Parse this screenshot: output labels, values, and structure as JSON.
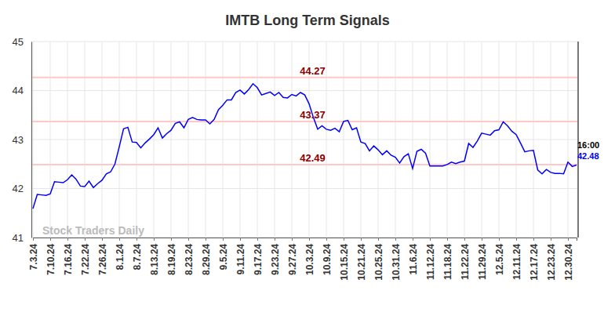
{
  "chart_data": {
    "type": "line",
    "title": "IMTB Long Term Signals",
    "categories": [
      "7.3.24",
      null,
      null,
      null,
      "7.10.24",
      null,
      null,
      null,
      "7.16.24",
      null,
      null,
      null,
      "7.22.24",
      null,
      null,
      null,
      "7.26.24",
      null,
      null,
      null,
      "8.1.24",
      null,
      null,
      null,
      "8.7.24",
      null,
      null,
      null,
      "8.13.24",
      null,
      null,
      null,
      "8.19.24",
      null,
      null,
      null,
      "8.23.24",
      null,
      null,
      null,
      "8.29.24",
      null,
      null,
      null,
      "9.5.24",
      null,
      null,
      null,
      "9.11.24",
      null,
      null,
      null,
      "9.17.24",
      null,
      null,
      null,
      "9.23.24",
      null,
      null,
      null,
      "9.27.24",
      null,
      null,
      null,
      "10.3.24",
      null,
      null,
      null,
      "10.9.24",
      null,
      null,
      null,
      "10.15.24",
      null,
      null,
      null,
      "10.21.24",
      null,
      null,
      null,
      "10.25.24",
      null,
      null,
      null,
      "10.31.24",
      null,
      null,
      null,
      "11.6.24",
      null,
      null,
      null,
      "11.12.24",
      null,
      null,
      null,
      "11.18.24",
      null,
      null,
      null,
      "11.22.24",
      null,
      null,
      null,
      "11.29.24",
      null,
      null,
      null,
      "12.5.24",
      null,
      null,
      null,
      "12.11.24",
      null,
      null,
      null,
      "12.17.24",
      null,
      null,
      null,
      "12.23.24",
      null,
      null,
      null,
      "12.30.24",
      null,
      null
    ],
    "values": [
      41.59,
      41.88,
      41.87,
      41.86,
      41.89,
      42.14,
      42.13,
      42.12,
      42.18,
      42.28,
      42.19,
      42.05,
      42.04,
      42.15,
      42.02,
      42.1,
      42.17,
      42.3,
      42.34,
      42.5,
      42.85,
      43.22,
      43.25,
      42.95,
      42.94,
      42.83,
      42.93,
      43.01,
      43.1,
      43.24,
      43.03,
      43.12,
      43.19,
      43.33,
      43.36,
      43.24,
      43.41,
      43.45,
      43.41,
      43.4,
      43.4,
      43.32,
      43.41,
      43.61,
      43.7,
      43.81,
      43.81,
      43.96,
      44.01,
      43.93,
      44.02,
      44.14,
      44.06,
      43.91,
      43.94,
      43.97,
      43.9,
      43.96,
      43.86,
      43.85,
      43.92,
      43.89,
      43.96,
      43.91,
      43.73,
      43.45,
      43.21,
      43.28,
      43.21,
      43.19,
      43.23,
      43.16,
      43.37,
      43.39,
      43.2,
      43.24,
      42.95,
      42.92,
      42.77,
      42.87,
      42.79,
      42.69,
      42.77,
      42.68,
      42.64,
      42.52,
      42.65,
      42.71,
      42.41,
      42.76,
      42.8,
      42.72,
      42.46,
      42.46,
      42.46,
      42.46,
      42.49,
      42.54,
      42.51,
      42.54,
      42.56,
      42.92,
      42.84,
      42.97,
      43.13,
      43.11,
      43.09,
      43.18,
      43.2,
      43.36,
      43.28,
      43.17,
      43.1,
      42.93,
      42.75,
      42.77,
      42.78,
      42.38,
      42.3,
      42.39,
      42.33,
      42.31,
      42.31,
      42.3,
      42.54,
      42.45,
      42.48
    ],
    "color": "#0000ff",
    "levels": [
      44.27,
      43.37,
      42.49
    ],
    "last_value": 42.48,
    "annotations": [
      "16:00",
      "Stock Traders Daily"
    ],
    "ylim": [
      41,
      45
    ],
    "yticks": [
      41,
      42,
      43,
      44,
      45
    ],
    "grid": true
  }
}
